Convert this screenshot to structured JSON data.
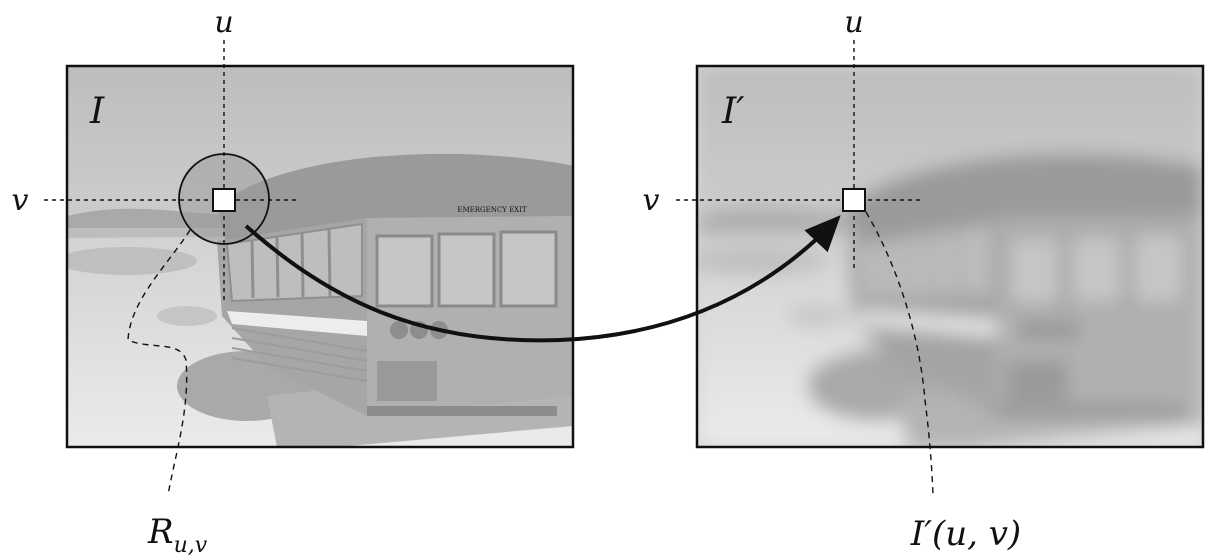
{
  "diagram": {
    "source_panel": {
      "image_label": "I",
      "axis_u": "u",
      "axis_v": "v",
      "bus_sign": "EMERGENCY EXIT"
    },
    "target_panel": {
      "image_label": "I′",
      "axis_u": "u",
      "axis_v": "v"
    },
    "annotations": {
      "region_label_base": "R",
      "region_label_sub": "u,v",
      "target_label": "I′(u, v)"
    }
  }
}
